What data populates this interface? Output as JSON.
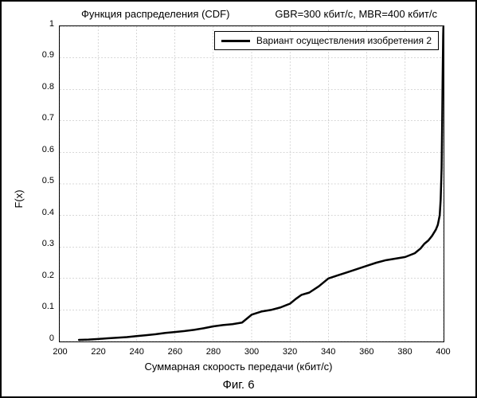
{
  "chart": {
    "type": "line",
    "title_left": "Функция распределения (CDF)",
    "title_right": "GBR=300 кбит/с, MBR=400 кбит/с",
    "title_fontsize": 13,
    "xlabel": "Суммарная скорость передачи (кбит/с)",
    "ylabel": "F(x)",
    "label_fontsize": 13,
    "caption": "Фиг. 6",
    "caption_fontsize": 15,
    "xlim": [
      200,
      400
    ],
    "ylim": [
      0,
      1
    ],
    "xticks": [
      200,
      220,
      240,
      260,
      280,
      300,
      320,
      340,
      360,
      380,
      400
    ],
    "yticks": [
      0,
      0.1,
      0.2,
      0.3,
      0.4,
      0.5,
      0.6,
      0.7,
      0.8,
      0.9,
      1
    ],
    "grid": true,
    "grid_color": "#b0b0b0",
    "grid_width": 0.5,
    "background_color": "#ffffff",
    "axis_color": "#000000",
    "tick_fontsize": 11,
    "series": [
      {
        "name": "Вариант осуществления изобретения 2",
        "color": "#000000",
        "line_width": 2.5,
        "x": [
          210,
          215,
          220,
          225,
          230,
          235,
          240,
          245,
          250,
          255,
          260,
          265,
          270,
          275,
          280,
          285,
          290,
          295,
          300,
          305,
          310,
          315,
          320,
          323,
          326,
          330,
          335,
          340,
          345,
          350,
          355,
          360,
          365,
          370,
          375,
          380,
          385,
          388,
          390,
          392,
          394,
          396,
          397,
          398,
          398.5,
          399,
          399.3,
          399.5,
          399.7,
          399.8,
          399.9,
          400
        ],
        "y": [
          0.005,
          0.006,
          0.008,
          0.01,
          0.012,
          0.014,
          0.017,
          0.02,
          0.023,
          0.027,
          0.03,
          0.033,
          0.037,
          0.042,
          0.048,
          0.052,
          0.055,
          0.06,
          0.085,
          0.095,
          0.1,
          0.108,
          0.12,
          0.135,
          0.148,
          0.155,
          0.175,
          0.2,
          0.21,
          0.22,
          0.23,
          0.24,
          0.25,
          0.258,
          0.263,
          0.268,
          0.28,
          0.295,
          0.31,
          0.32,
          0.335,
          0.355,
          0.37,
          0.4,
          0.45,
          0.55,
          0.7,
          0.82,
          0.92,
          0.97,
          0.995,
          1.0
        ]
      }
    ],
    "legend": {
      "position": "upper-right",
      "border_color": "#000000",
      "background_color": "#ffffff",
      "fontsize": 12
    }
  }
}
